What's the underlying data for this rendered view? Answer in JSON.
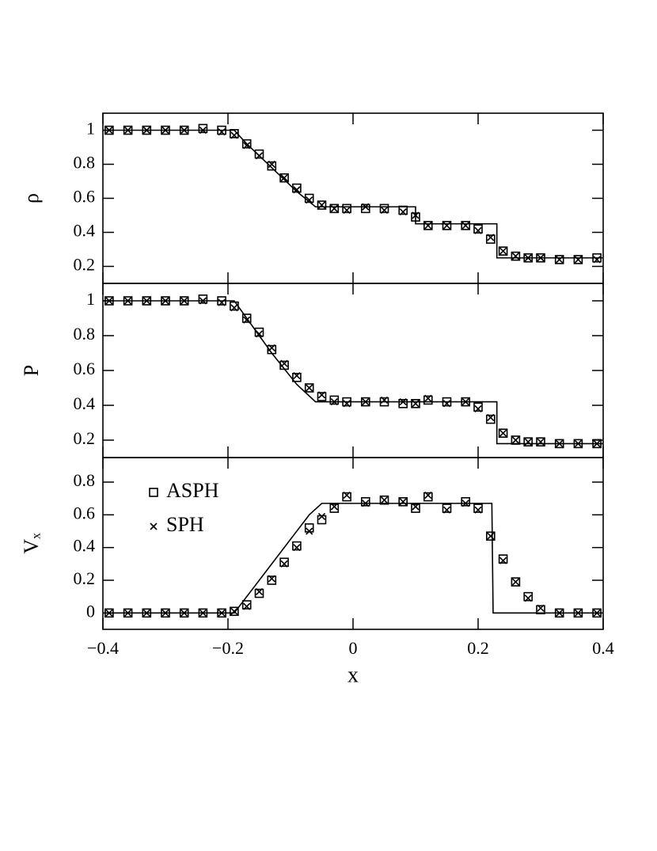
{
  "chart_data": [
    {
      "type": "scatter",
      "ylabel": "ρ",
      "xlim": [
        -0.4,
        0.4
      ],
      "xticks": [
        -0.4,
        -0.2,
        0,
        0.2,
        0.4
      ],
      "ylim": [
        0.1,
        1.1
      ],
      "yticks": [
        0.2,
        0.4,
        0.6,
        0.8,
        1
      ],
      "x": [
        -0.39,
        -0.36,
        -0.33,
        -0.3,
        -0.27,
        -0.24,
        -0.21,
        -0.19,
        -0.17,
        -0.15,
        -0.13,
        -0.11,
        -0.09,
        -0.07,
        -0.05,
        -0.03,
        -0.01,
        0.02,
        0.05,
        0.08,
        0.1,
        0.12,
        0.15,
        0.18,
        0.2,
        0.22,
        0.24,
        0.26,
        0.28,
        0.3,
        0.33,
        0.36,
        0.39
      ],
      "series": [
        {
          "color": "#000000",
          "marker": "line",
          "x": [
            -0.4,
            -0.19,
            -0.17,
            -0.13,
            -0.09,
            -0.06,
            0.1,
            0.1,
            0.23,
            0.23,
            0.4
          ],
          "values": [
            1,
            1,
            0.92,
            0.78,
            0.64,
            0.55,
            0.55,
            0.45,
            0.45,
            0.25,
            0.25
          ]
        },
        {
          "color": "#000000",
          "marker": "square",
          "values": [
            1,
            1,
            1,
            1,
            1,
            1.01,
            1.0,
            0.98,
            0.92,
            0.86,
            0.79,
            0.72,
            0.66,
            0.6,
            0.56,
            0.54,
            0.54,
            0.54,
            0.54,
            0.53,
            0.49,
            0.44,
            0.44,
            0.44,
            0.42,
            0.36,
            0.29,
            0.26,
            0.25,
            0.25,
            0.24,
            0.24,
            0.25
          ]
        },
        {
          "color": "#000000",
          "marker": "cross",
          "values": [
            1,
            1,
            1,
            1,
            1,
            1,
            0.99,
            0.97,
            0.91,
            0.85,
            0.8,
            0.72,
            0.65,
            0.59,
            0.56,
            0.54,
            0.53,
            0.55,
            0.53,
            0.52,
            0.5,
            0.44,
            0.44,
            0.44,
            0.41,
            0.37,
            0.29,
            0.26,
            0.25,
            0.25,
            0.24,
            0.24,
            0.24
          ]
        }
      ]
    },
    {
      "type": "scatter",
      "ylabel": "P",
      "xlim": [
        -0.4,
        0.4
      ],
      "xticks": [
        -0.4,
        -0.2,
        0,
        0.2,
        0.4
      ],
      "ylim": [
        0.1,
        1.1
      ],
      "yticks": [
        0.2,
        0.4,
        0.6,
        0.8,
        1
      ],
      "x": [
        -0.39,
        -0.36,
        -0.33,
        -0.3,
        -0.27,
        -0.24,
        -0.21,
        -0.19,
        -0.17,
        -0.15,
        -0.13,
        -0.11,
        -0.09,
        -0.07,
        -0.05,
        -0.03,
        -0.01,
        0.02,
        0.05,
        0.08,
        0.1,
        0.12,
        0.15,
        0.18,
        0.2,
        0.22,
        0.24,
        0.26,
        0.28,
        0.3,
        0.33,
        0.36,
        0.39
      ],
      "series": [
        {
          "color": "#000000",
          "marker": "line",
          "x": [
            -0.4,
            -0.19,
            -0.17,
            -0.13,
            -0.09,
            -0.06,
            0.23,
            0.23,
            0.4
          ],
          "values": [
            1,
            1,
            0.9,
            0.7,
            0.52,
            0.42,
            0.42,
            0.18,
            0.18
          ]
        },
        {
          "color": "#000000",
          "marker": "square",
          "values": [
            1,
            1,
            1,
            1,
            1,
            1.01,
            1,
            0.97,
            0.9,
            0.82,
            0.72,
            0.63,
            0.56,
            0.5,
            0.45,
            0.43,
            0.42,
            0.42,
            0.42,
            0.41,
            0.41,
            0.43,
            0.42,
            0.42,
            0.39,
            0.32,
            0.24,
            0.2,
            0.19,
            0.19,
            0.18,
            0.18,
            0.18
          ]
        },
        {
          "color": "#000000",
          "marker": "cross",
          "values": [
            1,
            1,
            1,
            1,
            1,
            1,
            0.99,
            0.96,
            0.89,
            0.81,
            0.73,
            0.64,
            0.57,
            0.5,
            0.46,
            0.42,
            0.41,
            0.42,
            0.43,
            0.42,
            0.41,
            0.44,
            0.41,
            0.42,
            0.38,
            0.33,
            0.24,
            0.2,
            0.19,
            0.19,
            0.18,
            0.18,
            0.18
          ]
        }
      ]
    },
    {
      "type": "scatter",
      "ylabel": "Vₓ",
      "xlabel": "x",
      "legend": "upper left",
      "xlim": [
        -0.4,
        0.4
      ],
      "xticks": [
        -0.4,
        -0.2,
        0,
        0.2,
        0.4
      ],
      "ylim": [
        -0.1,
        0.95
      ],
      "yticks": [
        0,
        0.2,
        0.4,
        0.6,
        0.8
      ],
      "x": [
        -0.39,
        -0.36,
        -0.33,
        -0.3,
        -0.27,
        -0.24,
        -0.21,
        -0.19,
        -0.17,
        -0.15,
        -0.13,
        -0.11,
        -0.09,
        -0.07,
        -0.05,
        -0.03,
        -0.01,
        0.02,
        0.05,
        0.08,
        0.1,
        0.12,
        0.15,
        0.18,
        0.2,
        0.22,
        0.24,
        0.26,
        0.28,
        0.3,
        0.33,
        0.36,
        0.39
      ],
      "series": [
        {
          "color": "#000000",
          "marker": "line",
          "x": [
            -0.4,
            -0.19,
            -0.15,
            -0.11,
            -0.07,
            -0.05,
            0.222,
            0.224,
            0.4
          ],
          "values": [
            0,
            0,
            0.2,
            0.4,
            0.6,
            0.67,
            0.67,
            0,
            0
          ]
        },
        {
          "name": "ASPH",
          "color": "#000000",
          "marker": "square",
          "values": [
            0,
            0,
            0,
            0,
            0,
            0,
            0,
            0.01,
            0.05,
            0.12,
            0.2,
            0.31,
            0.41,
            0.52,
            0.57,
            0.64,
            0.71,
            0.68,
            0.69,
            0.68,
            0.64,
            0.71,
            0.64,
            0.68,
            0.64,
            0.47,
            0.33,
            0.19,
            0.1,
            0.02,
            0,
            0,
            0
          ]
        },
        {
          "name": "SPH",
          "color": "#000000",
          "marker": "cross",
          "values": [
            0,
            0,
            0,
            0,
            0,
            0,
            0,
            0.01,
            0.04,
            0.13,
            0.21,
            0.3,
            0.4,
            0.5,
            0.59,
            0.65,
            0.72,
            0.67,
            0.69,
            0.68,
            0.65,
            0.72,
            0.63,
            0.67,
            0.63,
            0.47,
            0.32,
            0.19,
            0.09,
            0.03,
            0,
            0,
            0
          ]
        }
      ]
    }
  ]
}
